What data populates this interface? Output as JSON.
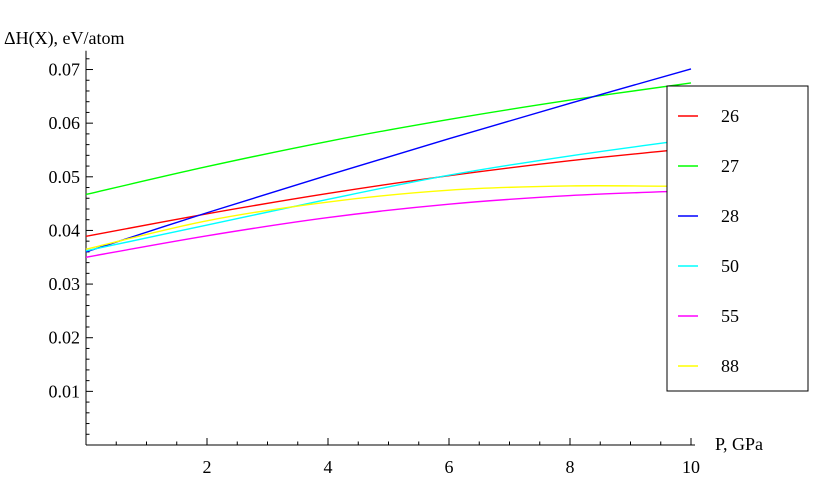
{
  "chart_data": {
    "type": "line",
    "xlabel": "P, GPa",
    "ylabel": "ΔH(X), eV/atom",
    "xlim": [
      0,
      10
    ],
    "ylim": [
      0,
      0.072
    ],
    "x_ticks": [
      2,
      4,
      6,
      8,
      10
    ],
    "x_tick_labels": [
      "2",
      "4",
      "6",
      "8",
      "10"
    ],
    "y_ticks": [
      0.01,
      0.02,
      0.03,
      0.04,
      0.05,
      0.06,
      0.07
    ],
    "y_tick_labels": [
      "0.01",
      "0.02",
      "0.03",
      "0.04",
      "0.05",
      "0.06",
      "0.07"
    ],
    "grid": false,
    "legend_position": "right",
    "x": [
      0,
      2,
      4,
      6,
      8,
      10
    ],
    "series": [
      {
        "name": "26",
        "color": "#ff0000",
        "values": [
          0.0389,
          0.0431,
          0.0469,
          0.0502,
          0.053,
          0.0553
        ]
      },
      {
        "name": "27",
        "color": "#00ff00",
        "values": [
          0.0467,
          0.0519,
          0.0566,
          0.0607,
          0.0643,
          0.0675
        ]
      },
      {
        "name": "28",
        "color": "#0000ff",
        "values": [
          0.036,
          0.0433,
          0.0503,
          0.0571,
          0.0637,
          0.0701
        ]
      },
      {
        "name": "50",
        "color": "#00ffff",
        "values": [
          0.0362,
          0.041,
          0.0458,
          0.0503,
          0.0539,
          0.057
        ]
      },
      {
        "name": "55",
        "color": "#ff00ff",
        "values": [
          0.035,
          0.039,
          0.0424,
          0.0449,
          0.0465,
          0.0474
        ]
      },
      {
        "name": "88",
        "color": "#ffff00",
        "values": [
          0.0365,
          0.0418,
          0.0453,
          0.0475,
          0.0483,
          0.0482
        ]
      }
    ]
  }
}
